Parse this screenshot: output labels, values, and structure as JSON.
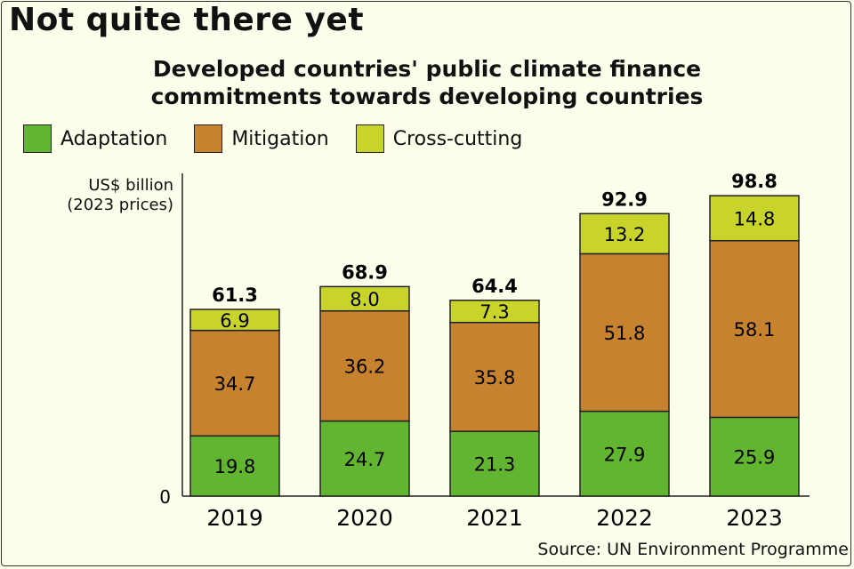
{
  "title": "Not quite there yet",
  "subtitle_line1": "Developed countries' public climate finance",
  "subtitle_line2": "commitments towards developing countries",
  "unit_line1": "US$ billion",
  "unit_line2": "(2023 prices)",
  "source": "Source: UN Environment Programme",
  "colors": {
    "Adaptation": "#62b530",
    "Mitigation": "#c7822f",
    "Cross-cutting": "#c8d42a",
    "background": "#fdfdeb"
  },
  "chart_data": {
    "type": "bar",
    "stacked": true,
    "title": "Developed countries' public climate finance commitments towards developing countries",
    "ylabel": "US$ billion (2023 prices)",
    "xlabel": "",
    "ylim": [
      0,
      100
    ],
    "y_ticks": [
      "0"
    ],
    "legend_position": "top-left",
    "categories": [
      "2019",
      "2020",
      "2021",
      "2022",
      "2023"
    ],
    "series": [
      {
        "name": "Adaptation",
        "values": [
          19.8,
          24.7,
          21.3,
          27.9,
          25.9
        ]
      },
      {
        "name": "Mitigation",
        "values": [
          34.7,
          36.2,
          35.8,
          51.8,
          58.1
        ]
      },
      {
        "name": "Cross-cutting",
        "values": [
          6.9,
          8.0,
          7.3,
          13.2,
          14.8
        ]
      }
    ],
    "totals": [
      "61.3",
      "68.9",
      "64.4",
      "92.9",
      "98.8"
    ],
    "labels": [
      [
        "19.8",
        "24.7",
        "21.3",
        "27.9",
        "25.9"
      ],
      [
        "34.7",
        "36.2",
        "35.8",
        "51.8",
        "58.1"
      ],
      [
        "6.9",
        "8.0",
        "7.3",
        "13.2",
        "14.8"
      ]
    ]
  }
}
